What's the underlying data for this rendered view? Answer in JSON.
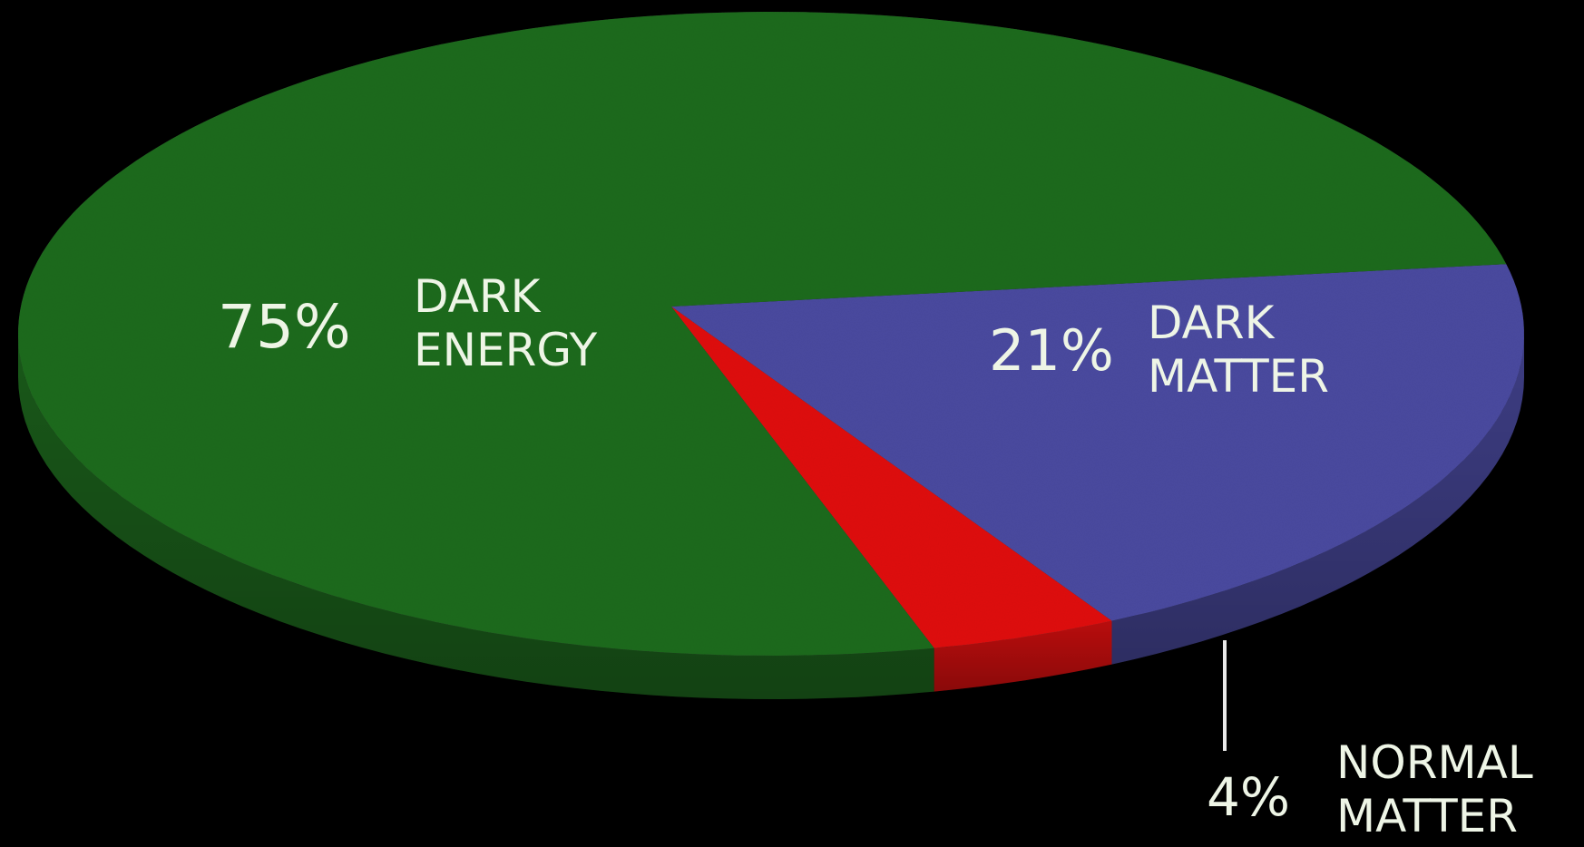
{
  "chart_data": {
    "type": "pie",
    "style": "3d-tilted",
    "series": [
      {
        "label": "DARK ENERGY",
        "value": 75,
        "value_label": "75%",
        "color": "#1f6b1f"
      },
      {
        "label": "DARK MATTER",
        "value": 21,
        "value_label": "21%",
        "color": "#4a4aa0"
      },
      {
        "label": "NORMAL MATTER",
        "value": 4,
        "value_label": "4%",
        "color": "#e01010"
      }
    ],
    "labels": {
      "dark_energy_pct": "75%",
      "dark_energy_name": "DARK\nENERGY",
      "dark_matter_pct": "21%",
      "dark_matter_name": "DARK\nMATTER",
      "normal_matter_pct": "4%",
      "normal_matter_name": "NORMAL\nMATTER"
    },
    "background": "#000000"
  }
}
